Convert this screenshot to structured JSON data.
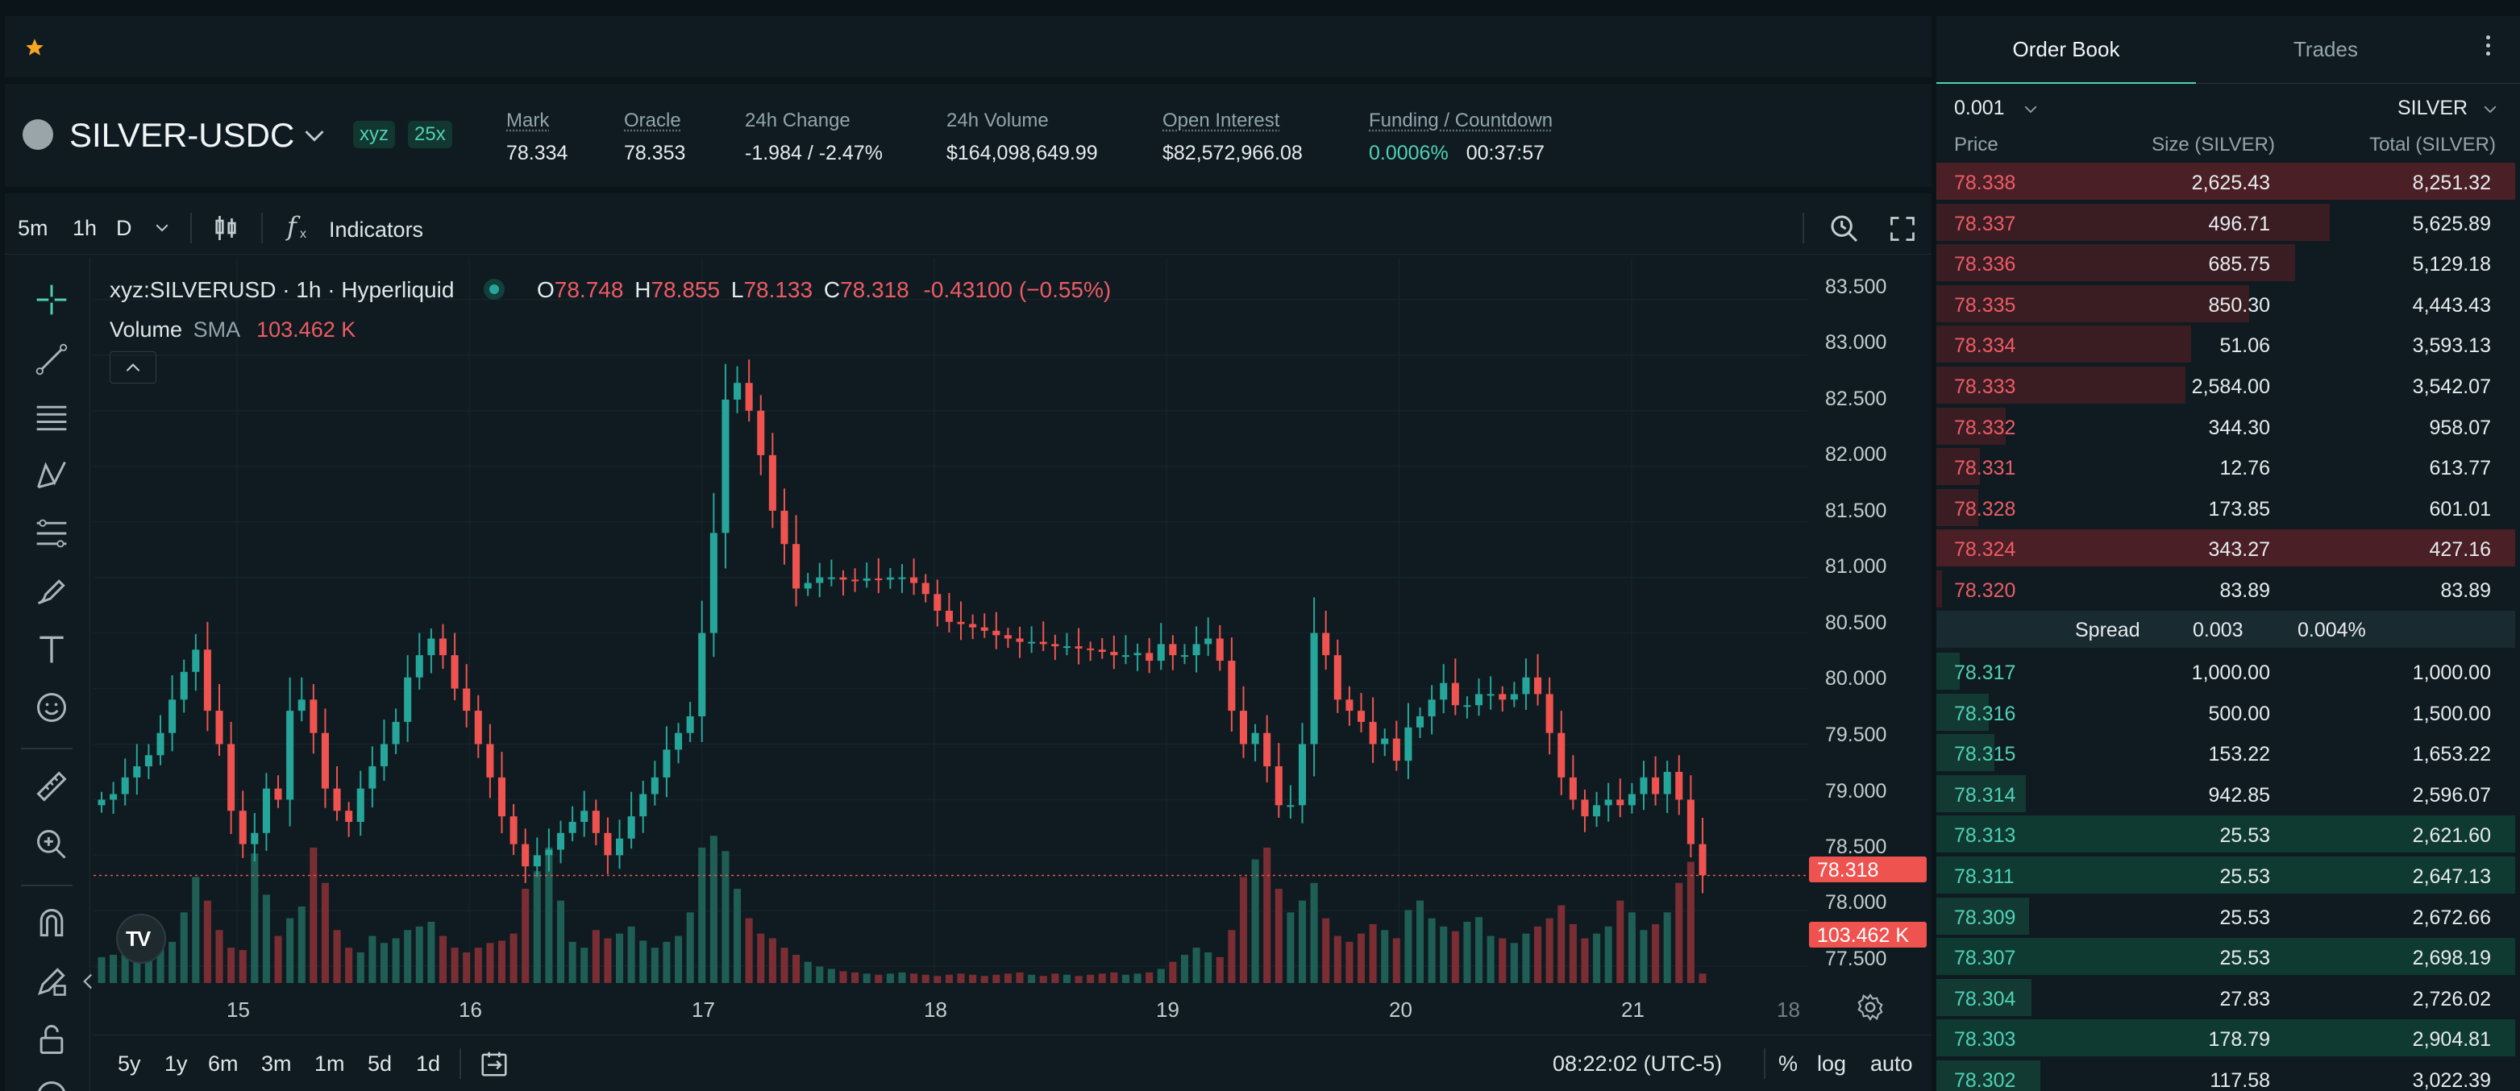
{
  "favorite_icon": "star-icon",
  "header": {
    "symbol": "SILVER-USDC",
    "badge_xyz": "xyz",
    "badge_leverage": "25x",
    "stats": [
      {
        "label": "Mark",
        "value": "78.334"
      },
      {
        "label": "Oracle",
        "value": "78.353"
      },
      {
        "label": "24h Change",
        "value": "-1.984 / -2.47%"
      },
      {
        "label": "24h Volume",
        "value": "$164,098,649.99"
      },
      {
        "label": "Open Interest",
        "value": "$82,572,966.08"
      },
      {
        "label": "Funding / Countdown",
        "value": "0.0006%",
        "value2": "00:37:57"
      }
    ]
  },
  "chart_toolbar": {
    "intervals": [
      "5m",
      "1h",
      "D"
    ],
    "active_interval": "1h",
    "indicators_label": "Indicators"
  },
  "legend": {
    "title": "xyz:SILVERUSD · 1h · Hyperliquid",
    "o_label": "O",
    "o": "78.748",
    "h_label": "H",
    "h": "78.855",
    "l_label": "L",
    "l": "78.133",
    "c_label": "C",
    "c": "78.318",
    "change": "-0.43100 (−0.55%)",
    "volume_label": "Volume",
    "sma_label": "SMA",
    "volume_value": "103.462 K"
  },
  "chart_data": {
    "type": "candlestick",
    "x_labels": [
      "15",
      "16",
      "17",
      "18",
      "19",
      "20",
      "21",
      "18"
    ],
    "y_ticks": [
      "83.500",
      "83.000",
      "82.500",
      "82.000",
      "81.500",
      "81.000",
      "80.500",
      "80.000",
      "79.500",
      "79.000",
      "78.500",
      "78.000",
      "77.500"
    ],
    "ylim": [
      77.35,
      83.6
    ],
    "last_price": "78.318",
    "last_volume": "103.462 K",
    "close_path": [
      79.0,
      79.05,
      79.2,
      79.3,
      79.4,
      79.6,
      79.9,
      80.15,
      80.35,
      79.8,
      79.5,
      78.9,
      78.6,
      78.7,
      79.1,
      79.0,
      79.8,
      79.9,
      79.6,
      79.1,
      78.9,
      78.8,
      79.1,
      79.3,
      79.5,
      79.7,
      80.1,
      80.3,
      80.45,
      80.3,
      80.0,
      79.8,
      79.5,
      79.2,
      78.85,
      78.6,
      78.4,
      78.5,
      78.55,
      78.7,
      78.8,
      78.9,
      78.7,
      78.5,
      78.65,
      78.85,
      79.05,
      79.2,
      79.45,
      79.6,
      79.75,
      80.5,
      81.4,
      82.6,
      82.75,
      82.5,
      82.1,
      81.6,
      81.3,
      80.9,
      80.95,
      81.0,
      81.0,
      80.98,
      80.97,
      80.99,
      80.98,
      81.0,
      81.0,
      80.95,
      80.85,
      80.7,
      80.6,
      80.58,
      80.55,
      80.52,
      80.48,
      80.45,
      80.42,
      80.42,
      80.4,
      80.38,
      80.38,
      80.36,
      80.35,
      80.33,
      80.3,
      80.3,
      80.32,
      80.25,
      80.4,
      80.3,
      80.3,
      80.4,
      80.45,
      80.25,
      79.8,
      79.5,
      79.6,
      79.3,
      78.95,
      78.95,
      79.5,
      80.5,
      80.3,
      79.9,
      79.8,
      79.7,
      79.5,
      79.55,
      79.35,
      79.65,
      79.75,
      79.9,
      80.05,
      79.85,
      79.85,
      79.95,
      79.95,
      79.9,
      79.95,
      80.1,
      79.95,
      79.6,
      79.2,
      79.0,
      78.85,
      78.95,
      79.0,
      78.95,
      79.05,
      79.2,
      79.05,
      79.25,
      79.0,
      78.6,
      78.32
    ],
    "volume_path": [
      22,
      24,
      26,
      25,
      28,
      30,
      35,
      60,
      90,
      70,
      45,
      30,
      28,
      110,
      75,
      40,
      55,
      65,
      115,
      85,
      45,
      30,
      26,
      40,
      34,
      38,
      45,
      48,
      52,
      40,
      30,
      26,
      30,
      34,
      36,
      42,
      80,
      95,
      115,
      70,
      35,
      30,
      45,
      38,
      42,
      48,
      36,
      30,
      35,
      40,
      60,
      115,
      125,
      112,
      80,
      55,
      42,
      38,
      30,
      24,
      18,
      14,
      12,
      10,
      9,
      8,
      7,
      8,
      9,
      8,
      7,
      6,
      7,
      8,
      7,
      6,
      7,
      8,
      9,
      7,
      6,
      8,
      7,
      6,
      7,
      8,
      9,
      7,
      8,
      9,
      12,
      18,
      24,
      30,
      26,
      22,
      45,
      90,
      105,
      115,
      80,
      60,
      70,
      85,
      55,
      40,
      35,
      42,
      50,
      45,
      38,
      62,
      70,
      55,
      48,
      44,
      52,
      56,
      40,
      38,
      34,
      42,
      48,
      55,
      66,
      50,
      38,
      42,
      48,
      70,
      60,
      45,
      50,
      60,
      85,
      103
    ]
  },
  "chart_bottom": {
    "ranges": [
      "5y",
      "1y",
      "6m",
      "3m",
      "1m",
      "5d",
      "1d"
    ],
    "time": "08:22:02 (UTC-5)",
    "percent": "%",
    "log": "log",
    "auto": "auto"
  },
  "order_book": {
    "tabs": [
      "Order Book",
      "Trades"
    ],
    "tick_size": "0.001",
    "unit": "SILVER",
    "columns": [
      "Price",
      "Size (SILVER)",
      "Total (SILVER)"
    ],
    "spread_label": "Spread",
    "spread_value": "0.003",
    "spread_pct": "0.004%",
    "asks": [
      {
        "price": "78.338",
        "size": "2,625.43",
        "total": "8,251.32",
        "depth": 1.0
      },
      {
        "price": "78.337",
        "size": "496.71",
        "total": "5,625.89",
        "depth": 0.68
      },
      {
        "price": "78.336",
        "size": "685.75",
        "total": "5,129.18",
        "depth": 0.62
      },
      {
        "price": "78.335",
        "size": "850.30",
        "total": "4,443.43",
        "depth": 0.54
      },
      {
        "price": "78.334",
        "size": "51.06",
        "total": "3,593.13",
        "depth": 0.44
      },
      {
        "price": "78.333",
        "size": "2,584.00",
        "total": "3,542.07",
        "depth": 0.43
      },
      {
        "price": "78.332",
        "size": "344.30",
        "total": "958.07",
        "depth": 0.12
      },
      {
        "price": "78.331",
        "size": "12.76",
        "total": "613.77",
        "depth": 0.075
      },
      {
        "price": "78.328",
        "size": "173.85",
        "total": "601.01",
        "depth": 0.073
      },
      {
        "price": "78.324",
        "size": "343.27",
        "total": "427.16",
        "depth": 1.0
      },
      {
        "price": "78.320",
        "size": "83.89",
        "total": "83.89",
        "depth": 0.01
      }
    ],
    "bids": [
      {
        "price": "78.317",
        "size": "1,000.00",
        "total": "1,000.00",
        "depth": 0.04
      },
      {
        "price": "78.316",
        "size": "500.00",
        "total": "1,500.00",
        "depth": 0.09
      },
      {
        "price": "78.315",
        "size": "153.22",
        "total": "1,653.22",
        "depth": 0.1
      },
      {
        "price": "78.314",
        "size": "942.85",
        "total": "2,596.07",
        "depth": 0.155
      },
      {
        "price": "78.313",
        "size": "25.53",
        "total": "2,621.60",
        "depth": 1.0
      },
      {
        "price": "78.311",
        "size": "25.53",
        "total": "2,647.13",
        "depth": 1.0
      },
      {
        "price": "78.309",
        "size": "25.53",
        "total": "2,672.66",
        "depth": 0.16
      },
      {
        "price": "78.307",
        "size": "25.53",
        "total": "2,698.19",
        "depth": 1.0
      },
      {
        "price": "78.304",
        "size": "27.83",
        "total": "2,726.02",
        "depth": 0.165
      },
      {
        "price": "78.303",
        "size": "178.79",
        "total": "2,904.81",
        "depth": 1.0
      },
      {
        "price": "78.302",
        "size": "117.58",
        "total": "3,022.39",
        "depth": 0.18
      }
    ]
  },
  "colors": {
    "up": "#26a69a",
    "down": "#ef5350",
    "accent": "#4fd1b5",
    "bg": "#0f1b20"
  }
}
